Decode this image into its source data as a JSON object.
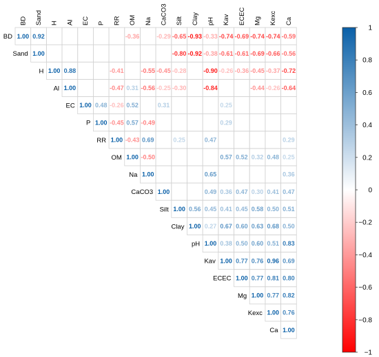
{
  "chart_data": {
    "type": "heatmap",
    "variables": [
      "BD",
      "Sand",
      "H",
      "Al",
      "EC",
      "P",
      "RR",
      "OM",
      "Na",
      "CaCO3",
      "Silt",
      "Clay",
      "pH",
      "Kav",
      "ECEC",
      "Mg",
      "Kexc",
      "Ca"
    ],
    "matrix": [
      [
        1.0,
        0.92,
        null,
        null,
        null,
        null,
        null,
        -0.36,
        null,
        -0.29,
        -0.65,
        -0.93,
        -0.33,
        -0.74,
        -0.69,
        -0.74,
        -0.74,
        -0.59
      ],
      [
        null,
        1.0,
        null,
        null,
        null,
        null,
        null,
        null,
        null,
        null,
        -0.8,
        -0.92,
        -0.38,
        -0.61,
        -0.61,
        -0.69,
        -0.66,
        -0.56
      ],
      [
        null,
        null,
        1.0,
        0.88,
        null,
        null,
        -0.41,
        null,
        -0.55,
        -0.45,
        -0.28,
        null,
        -0.9,
        -0.26,
        -0.36,
        -0.45,
        -0.37,
        -0.72
      ],
      [
        null,
        null,
        null,
        1.0,
        null,
        null,
        -0.47,
        0.31,
        -0.56,
        -0.25,
        -0.3,
        null,
        -0.84,
        null,
        null,
        -0.44,
        -0.26,
        -0.64
      ],
      [
        null,
        null,
        null,
        null,
        1.0,
        0.48,
        -0.26,
        0.52,
        null,
        0.31,
        null,
        null,
        null,
        0.25,
        null,
        null,
        null,
        null
      ],
      [
        null,
        null,
        null,
        null,
        null,
        1.0,
        -0.45,
        0.57,
        -0.49,
        null,
        null,
        null,
        null,
        0.29,
        null,
        null,
        null,
        null
      ],
      [
        null,
        null,
        null,
        null,
        null,
        null,
        1.0,
        -0.43,
        0.69,
        null,
        0.25,
        null,
        0.47,
        null,
        null,
        null,
        null,
        0.29
      ],
      [
        null,
        null,
        null,
        null,
        null,
        null,
        null,
        1.0,
        -0.5,
        null,
        null,
        null,
        null,
        0.57,
        0.52,
        0.32,
        0.48,
        0.25
      ],
      [
        null,
        null,
        null,
        null,
        null,
        null,
        null,
        null,
        1.0,
        null,
        null,
        null,
        0.65,
        null,
        null,
        null,
        null,
        0.36
      ],
      [
        null,
        null,
        null,
        null,
        null,
        null,
        null,
        null,
        null,
        1.0,
        null,
        null,
        0.49,
        0.36,
        0.47,
        0.3,
        0.41,
        0.47
      ],
      [
        null,
        null,
        null,
        null,
        null,
        null,
        null,
        null,
        null,
        null,
        1.0,
        0.56,
        0.45,
        0.41,
        0.45,
        0.58,
        0.5,
        0.51
      ],
      [
        null,
        null,
        null,
        null,
        null,
        null,
        null,
        null,
        null,
        null,
        null,
        1.0,
        0.27,
        0.67,
        0.6,
        0.63,
        0.68,
        0.5
      ],
      [
        null,
        null,
        null,
        null,
        null,
        null,
        null,
        null,
        null,
        null,
        null,
        null,
        1.0,
        0.38,
        0.5,
        0.6,
        0.51,
        0.83
      ],
      [
        null,
        null,
        null,
        null,
        null,
        null,
        null,
        null,
        null,
        null,
        null,
        null,
        null,
        1.0,
        0.77,
        0.76,
        0.96,
        0.69
      ],
      [
        null,
        null,
        null,
        null,
        null,
        null,
        null,
        null,
        null,
        null,
        null,
        null,
        null,
        null,
        1.0,
        0.77,
        0.81,
        0.8
      ],
      [
        null,
        null,
        null,
        null,
        null,
        null,
        null,
        null,
        null,
        null,
        null,
        null,
        null,
        null,
        null,
        1.0,
        0.77,
        0.82
      ],
      [
        null,
        null,
        null,
        null,
        null,
        null,
        null,
        null,
        null,
        null,
        null,
        null,
        null,
        null,
        null,
        null,
        1.0,
        0.76
      ],
      [
        null,
        null,
        null,
        null,
        null,
        null,
        null,
        null,
        null,
        null,
        null,
        null,
        null,
        null,
        null,
        null,
        null,
        1.0
      ]
    ],
    "colorbar": {
      "min": -1,
      "max": 1,
      "ticks": [
        "1",
        "0.8",
        "0.6",
        "0.4",
        "0.2",
        "0",
        "−0.2",
        "−0.4",
        "−0.6",
        "−0.8",
        "−1"
      ],
      "colors": {
        "negative": "#ff0000",
        "neutral": "#ffffff",
        "positive": "#0a60a8"
      }
    }
  }
}
